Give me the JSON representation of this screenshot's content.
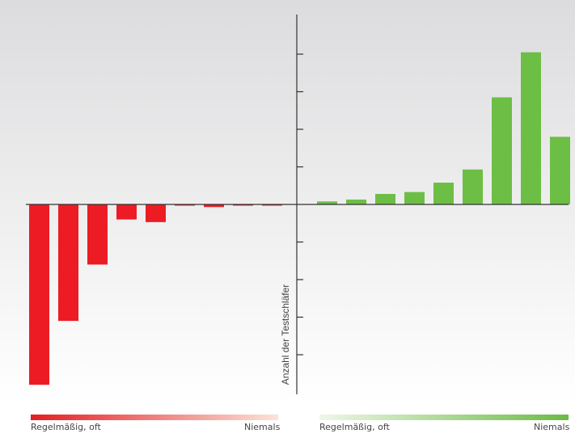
{
  "chart_data": {
    "type": "bar",
    "ylabel": "Anzahl der Testschläfer",
    "ylim": [
      -5,
      5
    ],
    "ytick_count": 9,
    "grid": false,
    "series": [
      {
        "side": "left",
        "color": "#ed1c24",
        "values": [
          -4.8,
          -3.1,
          -1.6,
          -0.4,
          -0.47,
          -0.03,
          -0.07,
          -0.02,
          -0.02
        ]
      },
      {
        "side": "right",
        "color": "#6dbe45",
        "values": [
          0.08,
          0.13,
          0.28,
          0.33,
          0.58,
          0.93,
          2.85,
          4.05,
          1.8
        ]
      }
    ]
  },
  "legend": {
    "left": {
      "start_label": "Regelmäßig, oft",
      "end_label": "Niemals",
      "gradient": [
        "#e31e24",
        "#fbe3d8"
      ]
    },
    "right": {
      "start_label": "Regelmäßig, oft",
      "end_label": "Niemals",
      "gradient": [
        "#eef7e8",
        "#6cbb45"
      ]
    }
  },
  "colors": {
    "background_top": "#dcdcde",
    "background_bottom": "#ffffff",
    "axis": "#333333"
  }
}
